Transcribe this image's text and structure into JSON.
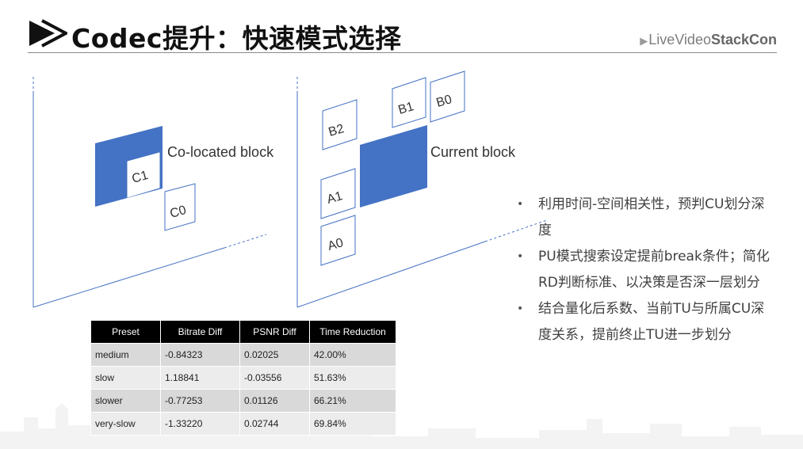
{
  "slide": {
    "title": "Codec提升：快速模式选择",
    "logo": {
      "prefix": "Live",
      "middle": "Video",
      "suffix": "StackCon"
    }
  },
  "diagram": {
    "left_block_label": "Co-located block",
    "right_block_label": "Current block",
    "labels": {
      "c1": "C1",
      "c0": "C0",
      "b2": "B2",
      "b1": "B1",
      "b0": "B0",
      "a1": "A1",
      "a0": "A0"
    },
    "colors": {
      "block_fill": "#4472c4",
      "frame_line": "#4472c4"
    }
  },
  "table": {
    "headers": [
      "Preset",
      "Bitrate Diff",
      "PSNR Diff",
      "Time Reduction"
    ],
    "rows": [
      [
        "medium",
        "-0.84323",
        "0.02025",
        "42.00%"
      ],
      [
        "slow",
        "1.18841",
        "-0.03556",
        "51.63%"
      ],
      [
        "slower",
        "-0.77253",
        "0.01126",
        "66.21%"
      ],
      [
        "very-slow",
        "-1.33220",
        "0.02744",
        "69.84%"
      ]
    ]
  },
  "bullets": [
    {
      "icon": "•",
      "text": "利用时间-空间相关性，预判CU划分深度"
    },
    {
      "icon": "•",
      "text": "PU模式搜索设定提前break条件；简化RD判断标准、以决策是否深一层划分"
    },
    {
      "icon": "•",
      "text": "结合量化后系数、当前TU与所属CU深度关系，提前终止TU进一步划分"
    }
  ]
}
